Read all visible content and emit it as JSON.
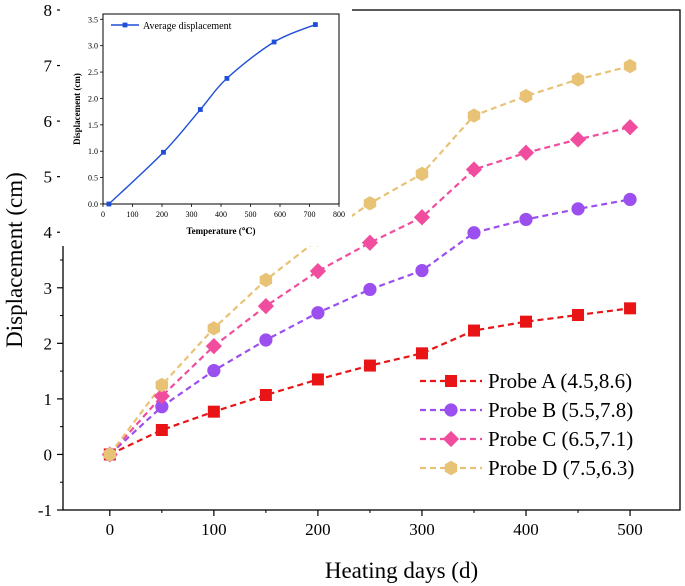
{
  "chart_data": [
    {
      "type": "line",
      "xlabel": "Heating days (d)",
      "ylabel": "Displacement (cm)",
      "xlim": [
        -45,
        548
      ],
      "ylim": [
        -1,
        8
      ],
      "xticks": [
        0,
        100,
        200,
        300,
        400,
        500
      ],
      "yticks": [
        -1,
        0,
        1,
        2,
        3,
        4,
        5,
        6,
        7,
        8
      ],
      "x": [
        0,
        50,
        100,
        150,
        200,
        250,
        300,
        350,
        400,
        450,
        500
      ],
      "legend_position": "bottom-right",
      "series": [
        {
          "name": "Probe A (4.5,8.6)",
          "color": "#e81416",
          "marker": "square",
          "values": [
            0,
            0.44,
            0.77,
            1.07,
            1.35,
            1.6,
            1.82,
            2.23,
            2.39,
            2.51,
            2.63
          ]
        },
        {
          "name": "Probe B (5.5,7.8)",
          "color": "#9a4fee",
          "marker": "circle",
          "values": [
            0,
            0.86,
            1.51,
            2.06,
            2.55,
            2.97,
            3.31,
            3.99,
            4.23,
            4.42,
            4.59
          ]
        },
        {
          "name": "Probe C (6.5,7.1)",
          "color": "#f04d9e",
          "marker": "diamond",
          "values": [
            0,
            1.05,
            1.95,
            2.67,
            3.3,
            3.81,
            4.27,
            5.13,
            5.43,
            5.67,
            5.89
          ]
        },
        {
          "name": "Probe D (7.5,6.3)",
          "color": "#e8c275",
          "marker": "hexagon",
          "values": [
            0,
            1.25,
            2.27,
            3.14,
            3.87,
            4.52,
            5.05,
            6.1,
            6.45,
            6.75,
            6.99
          ]
        }
      ]
    },
    {
      "type": "line",
      "inset": true,
      "xlabel": "Temperature (℃)",
      "ylabel": "Displacement (cm)",
      "xlim": [
        0,
        800
      ],
      "ylim": [
        0,
        3.6
      ],
      "xticks": [
        0,
        100,
        200,
        300,
        400,
        500,
        600,
        700,
        800
      ],
      "xtick_labels": [
        "0",
        "100",
        "200",
        "300",
        "400",
        "500",
        "600",
        "700",
        "800"
      ],
      "yticks": [
        0,
        0.5,
        1.0,
        1.5,
        2.0,
        2.5,
        3.0,
        3.5
      ],
      "ytick_labels": [
        "0.0",
        "0.5",
        "1.0",
        "1.5",
        "2.0",
        "2.5",
        "3.0",
        "3.5"
      ],
      "legend_position": "top-left",
      "series": [
        {
          "name": "Average displacement",
          "color": "#1f4fd8",
          "marker": "square",
          "x": [
            20,
            205,
            330,
            420,
            580,
            720
          ],
          "values": [
            0,
            0.98,
            1.79,
            2.38,
            3.07,
            3.4
          ]
        }
      ]
    }
  ]
}
